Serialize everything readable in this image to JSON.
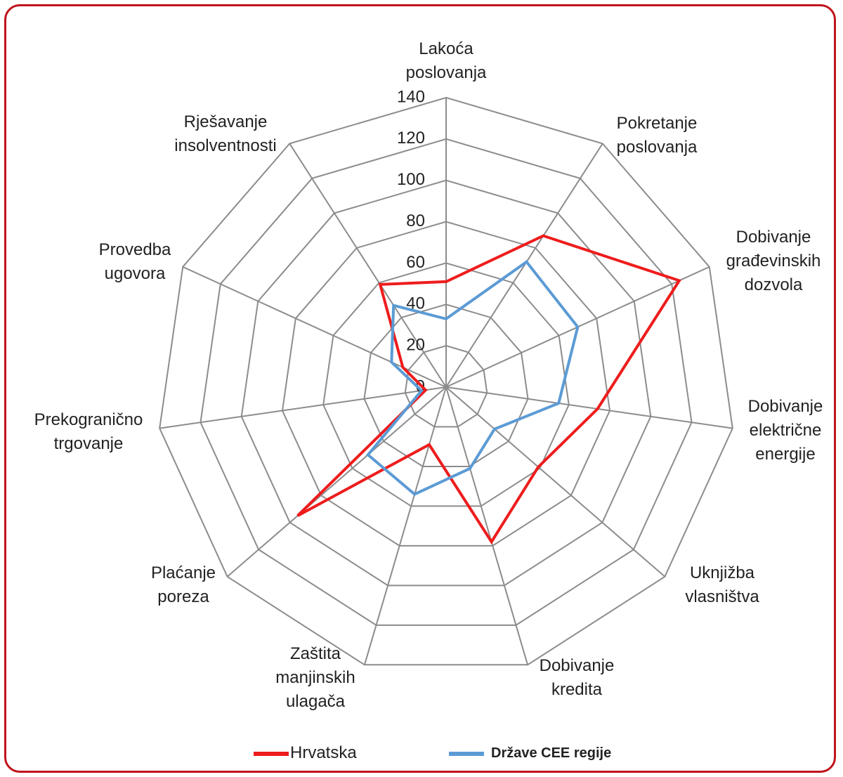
{
  "chart_data": {
    "type": "radar",
    "categories": [
      "Lakoća poslovanja",
      "Pokretanje poslovanja",
      "Dobivanje građevinskih dozvola",
      "Dobivanje električne energije",
      "Uknjižba vlasništva",
      "Dobivanje kredita",
      "Zaštita manjinskih ulagača",
      "Plaćanje poreza",
      "Prekogranično trgovanje",
      "Provedba ugovora",
      "Rješavanje insolventnosti"
    ],
    "series": [
      {
        "name": "Hrvatska",
        "color": "#ee1c1c",
        "values": [
          51,
          87,
          124,
          74,
          59,
          78,
          29,
          95,
          10,
          23,
          59
        ]
      },
      {
        "name": "Države CEE regije",
        "color": "#5b9bd5",
        "values": [
          33,
          72,
          70,
          55,
          31,
          41,
          54,
          50,
          12,
          29,
          47
        ]
      }
    ],
    "ylim": [
      0,
      140
    ],
    "yticks": [
      0,
      20,
      40,
      60,
      80,
      100,
      120,
      140
    ],
    "grid": true
  }
}
